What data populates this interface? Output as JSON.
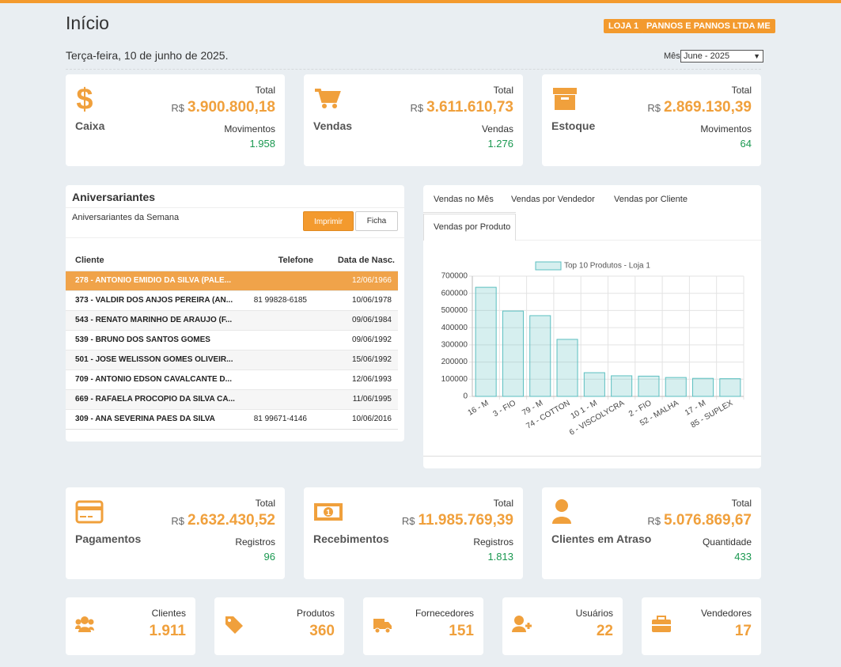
{
  "header": {
    "title": "Início",
    "store": "LOJA 1",
    "company": "PANNOS E PANNOS LTDA ME",
    "date": "Terça-feira, 10 de junho de 2025.",
    "month_label": "Mês",
    "month": "June - 2025"
  },
  "summary_cards": [
    {
      "title": "Caixa",
      "total_label": "Total",
      "currency": "R$",
      "total": "3.900.800,18",
      "detail_label": "Movimentos",
      "detail": "1.958"
    },
    {
      "title": "Vendas",
      "total_label": "Total",
      "currency": "R$",
      "total": "3.611.610,73",
      "detail_label": "Vendas",
      "detail": "1.276"
    },
    {
      "title": "Estoque",
      "total_label": "Total",
      "currency": "R$",
      "total": "2.869.130,39",
      "detail_label": "Movimentos",
      "detail": "64"
    }
  ],
  "birthdays": {
    "title": "Aniversariantes",
    "subtitle": "Aniversariantes da Semana",
    "print_button": "Imprimir",
    "sheet_button": "Ficha",
    "columns": [
      "Cliente",
      "Telefone",
      "Data de Nasc."
    ],
    "rows": [
      {
        "client": "278 - ANTONIO EMIDIO DA SILVA (PALE...",
        "date": "12/06/1966"
      },
      {
        "client": "373 - VALDIR DOS ANJOS PEREIRA (AN...",
        "phone": "81 99828-6185",
        "date": "10/06/1978"
      },
      {
        "client": "543 - RENATO MARINHO DE ARAUJO (F...",
        "date": "09/06/1984"
      },
      {
        "client": "539 - BRUNO DOS SANTOS GOMES",
        "date": "09/06/1992"
      },
      {
        "client": "501 - JOSE WELISSON GOMES OLIVEIR...",
        "date": "15/06/1992"
      },
      {
        "client": "709 - ANTONIO EDSON CAVALCANTE D...",
        "date": "12/06/1993"
      },
      {
        "client": "669 - RAFAELA PROCOPIO DA SILVA CA...",
        "date": "11/06/1995"
      },
      {
        "client": "309 - ANA SEVERINA PAES DA SILVA",
        "phone": "81 99671-4146",
        "date": "10/06/2016"
      }
    ]
  },
  "tabs": [
    "Vendas no Mês",
    "Vendas por Vendedor",
    "Vendas por Cliente",
    "Vendas por Produto"
  ],
  "chart_data": {
    "type": "bar",
    "categories": [
      "16 - M",
      "3 - FIO",
      "79 - M",
      "74 - COTTON",
      "10 1 - M",
      "6 - VISCOLYCRA",
      "2 - FIO",
      "52 - MALHA",
      "17 - M",
      "85 - SUPLEX"
    ],
    "series": [
      {
        "name": "Top 10 Produtos - Loja 1",
        "color": "#5bbfc0",
        "values": [
          635000,
          497000,
          470000,
          332000,
          138000,
          120000,
          118000,
          110000,
          105000,
          103000
        ]
      }
    ],
    "ylim": [
      0,
      700000
    ],
    "yticks": [
      0,
      100000,
      200000,
      300000,
      400000,
      500000,
      600000,
      700000
    ],
    "grid": true,
    "legend": "top"
  },
  "secondary_cards": [
    {
      "title": "Pagamentos",
      "total_label": "Total",
      "currency": "R$",
      "total": "2.632.430,52",
      "detail_label": "Registros",
      "detail": "96"
    },
    {
      "title": "Recebimentos",
      "total_label": "Total",
      "currency": "R$",
      "total": "11.985.769,39",
      "detail_label": "Registros",
      "detail": "1.813"
    },
    {
      "title": "Clientes em Atraso",
      "total_label": "Total",
      "currency": "R$",
      "total": "5.076.869,67",
      "detail_label": "Quantidade",
      "detail": "433"
    }
  ],
  "counters": [
    {
      "label": "Clientes",
      "value": "1.911"
    },
    {
      "label": "Produtos",
      "value": "360"
    },
    {
      "label": "Fornecedores",
      "value": "151"
    },
    {
      "label": "Usuários",
      "value": "22"
    },
    {
      "label": "Vendedores",
      "value": "17"
    }
  ]
}
